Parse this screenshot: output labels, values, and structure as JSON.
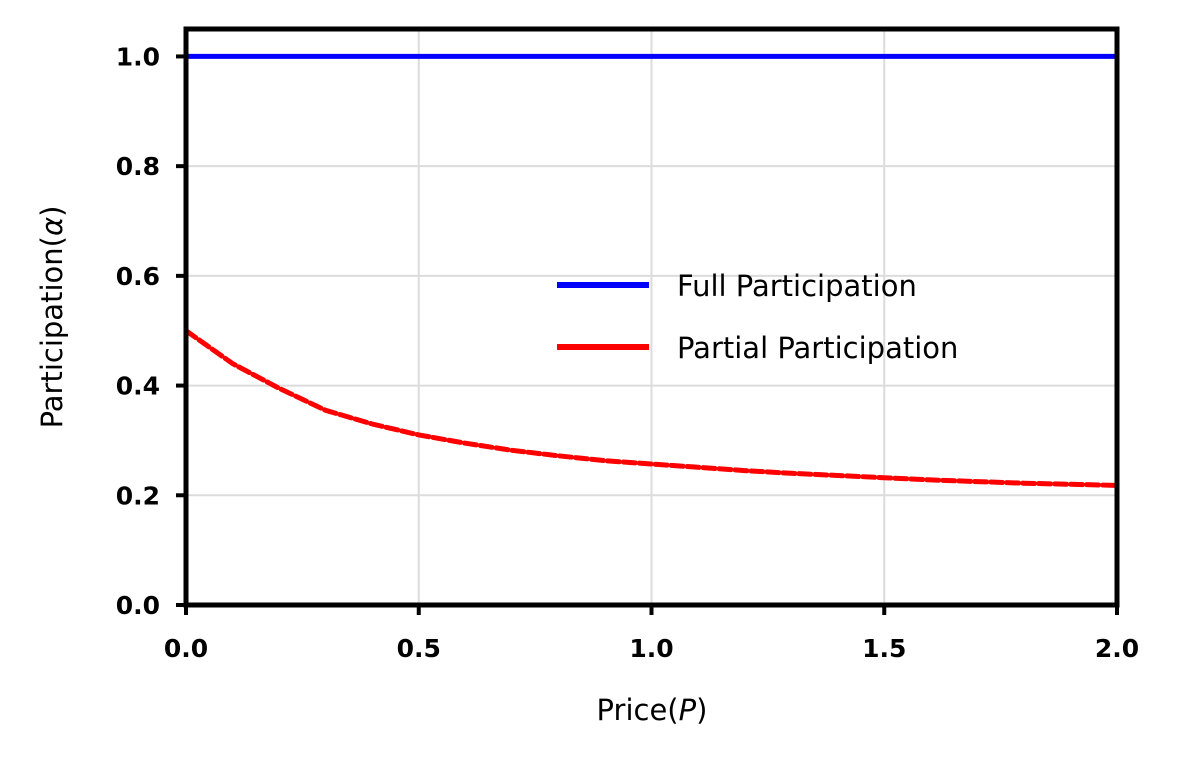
{
  "chart_data": {
    "type": "line",
    "title": "",
    "xlabel_prefix": "Price(",
    "xlabel_symbol": "P",
    "xlabel_suffix": ")",
    "ylabel_prefix": "Participation(",
    "ylabel_symbol": "α",
    "ylabel_suffix": ")",
    "xlim": [
      0.0,
      2.0
    ],
    "ylim": [
      0.0,
      1.05
    ],
    "xticks": [
      0.0,
      0.5,
      1.0,
      1.5,
      2.0
    ],
    "xtick_labels": [
      "0.0",
      "0.5",
      "1.0",
      "1.5",
      "2.0"
    ],
    "yticks": [
      0.0,
      0.2,
      0.4,
      0.6,
      0.8,
      1.0
    ],
    "ytick_labels": [
      "0.0",
      "0.2",
      "0.4",
      "0.6",
      "0.8",
      "1.0"
    ],
    "grid": true,
    "legend_position": "center-right",
    "series": [
      {
        "name": "Full Participation",
        "color": "#0000ff",
        "style": "solid",
        "x": [
          0.0,
          2.0
        ],
        "y": [
          1.0,
          1.0
        ]
      },
      {
        "name": "Partial Participation",
        "color": "#ff0000",
        "style": "dashed",
        "x": [
          0.0,
          0.1,
          0.2,
          0.3,
          0.4,
          0.5,
          0.6,
          0.7,
          0.8,
          0.9,
          1.0,
          1.1,
          1.2,
          1.3,
          1.4,
          1.5,
          1.6,
          1.7,
          1.8,
          1.9,
          2.0
        ],
        "y": [
          0.5,
          0.44,
          0.395,
          0.355,
          0.33,
          0.31,
          0.295,
          0.282,
          0.272,
          0.263,
          0.257,
          0.251,
          0.245,
          0.24,
          0.236,
          0.232,
          0.228,
          0.225,
          0.222,
          0.22,
          0.218
        ]
      }
    ]
  }
}
